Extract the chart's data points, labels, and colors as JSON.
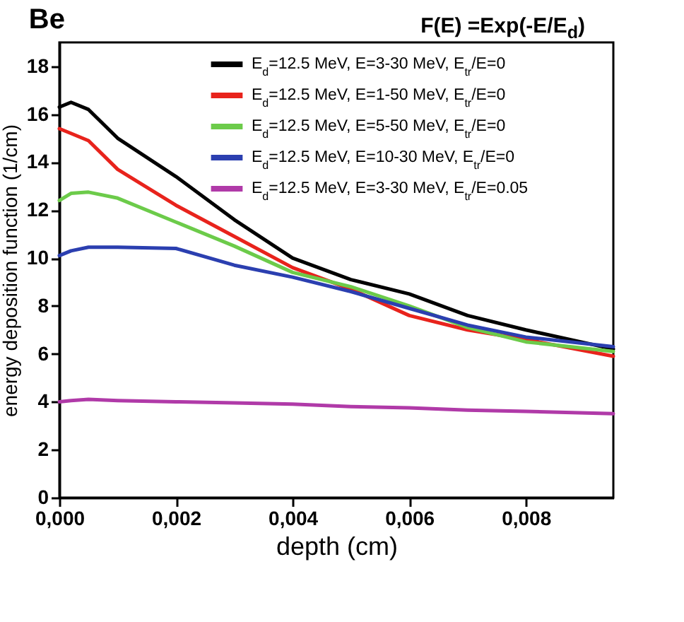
{
  "chart_data": {
    "type": "line",
    "title": "Be",
    "annotations": [
      "F(E) =Exp(-E/E$_{d}$)"
    ],
    "xlabel": "depth (cm)",
    "ylabel": "energy deposition function (1/cm)",
    "xlim": [
      0,
      0.0095
    ],
    "xticks": [
      {
        "value": 0,
        "label": "0,000"
      },
      {
        "value": 0.002,
        "label": "0,002"
      },
      {
        "value": 0.004,
        "label": "0,004"
      },
      {
        "value": 0.006,
        "label": "0,006"
      },
      {
        "value": 0.008,
        "label": "0,008"
      }
    ],
    "ylim": [
      0,
      19
    ],
    "yticks": [
      0,
      2,
      4,
      6,
      8,
      10,
      12,
      14,
      16,
      18
    ],
    "grid": false,
    "legend": "top right",
    "marker": "none",
    "line_style": "solid",
    "x": [
      0,
      0.0002,
      0.0005,
      0.001,
      0.002,
      0.003,
      0.004,
      0.005,
      0.006,
      0.007,
      0.008,
      0.0095
    ],
    "series": [
      {
        "name": "E$_{d}$=12.5 MeV, E=3-30 MeV, E$_{tr}$/E=0",
        "color": "#000000",
        "values": [
          16.3,
          16.5,
          16.2,
          15.0,
          13.4,
          11.6,
          10.0,
          9.1,
          8.5,
          7.6,
          7.0,
          6.2
        ]
      },
      {
        "name": "E$_{d}$=12.5 MeV, E=1-50 MeV, E$_{tr}$/E=0",
        "color": "#e8231c",
        "values": [
          15.4,
          15.2,
          14.9,
          13.7,
          12.2,
          10.9,
          9.6,
          8.7,
          7.6,
          7.0,
          6.6,
          5.9
        ]
      },
      {
        "name": "E$_{d}$=12.5 MeV, E=5-50 MeV, E$_{tr}$/E=0",
        "color": "#6ccb4a",
        "values": [
          12.4,
          12.7,
          12.75,
          12.5,
          11.5,
          10.5,
          9.4,
          8.8,
          8.0,
          7.1,
          6.5,
          6.1
        ]
      },
      {
        "name": "E$_{d}$=12.5 MeV, E=10-30 MeV, E$_{tr}$/E=0",
        "color": "#2b3fb0",
        "values": [
          10.1,
          10.3,
          10.45,
          10.45,
          10.4,
          9.7,
          9.2,
          8.6,
          7.9,
          7.2,
          6.7,
          6.3
        ]
      },
      {
        "name": "E$_{d}$=12.5 MeV, E=3-30 MeV, E$_{tr}$/E=0.05",
        "color": "#b03aa8",
        "values": [
          4.0,
          4.05,
          4.1,
          4.05,
          4.0,
          3.95,
          3.9,
          3.8,
          3.75,
          3.65,
          3.6,
          3.5
        ]
      }
    ]
  }
}
